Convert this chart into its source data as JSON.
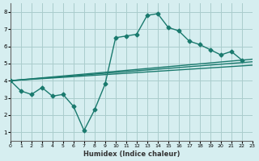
{
  "xlabel": "Humidex (Indice chaleur)",
  "bg_color": "#d6eef0",
  "grid_color": "#aacccc",
  "line_color": "#1a7a6e",
  "xlim": [
    0,
    23
  ],
  "ylim": [
    0.5,
    8.5
  ],
  "xticks": [
    0,
    1,
    2,
    3,
    4,
    5,
    6,
    7,
    8,
    9,
    10,
    11,
    12,
    13,
    14,
    15,
    16,
    17,
    18,
    19,
    20,
    21,
    22,
    23
  ],
  "yticks": [
    1,
    2,
    3,
    4,
    5,
    6,
    7,
    8
  ],
  "line1_x": [
    0,
    1,
    2,
    3,
    4,
    5,
    6,
    7,
    8,
    9,
    10,
    11,
    12,
    13,
    14,
    15,
    16,
    17,
    18,
    19,
    20,
    21,
    22
  ],
  "line1_y": [
    4.0,
    3.4,
    3.2,
    3.6,
    3.1,
    3.2,
    2.5,
    1.1,
    2.3,
    3.8,
    6.5,
    6.6,
    6.7,
    7.8,
    7.9,
    7.1,
    6.9,
    6.3,
    6.1,
    5.8,
    5.5,
    5.7,
    5.2
  ],
  "line2_x": [
    0,
    23
  ],
  "line2_y": [
    4.0,
    5.25
  ],
  "line3_x": [
    0,
    23
  ],
  "line3_y": [
    4.0,
    5.1
  ],
  "line4_x": [
    0,
    23
  ],
  "line4_y": [
    4.0,
    4.9
  ]
}
